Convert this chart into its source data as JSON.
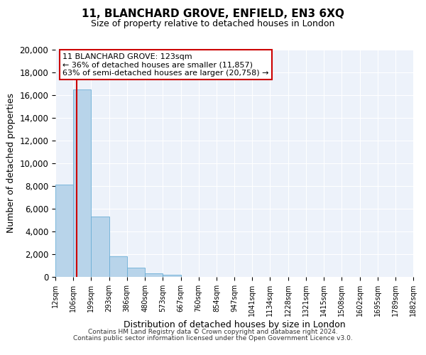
{
  "title": "11, BLANCHARD GROVE, ENFIELD, EN3 6XQ",
  "subtitle": "Size of property relative to detached houses in London",
  "xlabel": "Distribution of detached houses by size in London",
  "ylabel": "Number of detached properties",
  "bar_color": "#b8d4ea",
  "bar_edge_color": "#6aaed6",
  "property_line_value": 123,
  "property_line_color": "#cc0000",
  "annotation_title": "11 BLANCHARD GROVE: 123sqm",
  "annotation_line1": "← 36% of detached houses are smaller (11,857)",
  "annotation_line2": "63% of semi-detached houses are larger (20,758) →",
  "annotation_box_color": "#cc0000",
  "bin_edges": [
    12,
    106,
    199,
    293,
    386,
    480,
    573,
    667,
    760,
    854,
    947,
    1041,
    1134,
    1228,
    1321,
    1415,
    1508,
    1602,
    1695,
    1789,
    1882
  ],
  "bin_labels": [
    "12sqm",
    "106sqm",
    "199sqm",
    "293sqm",
    "386sqm",
    "480sqm",
    "573sqm",
    "667sqm",
    "760sqm",
    "854sqm",
    "947sqm",
    "1041sqm",
    "1134sqm",
    "1228sqm",
    "1321sqm",
    "1415sqm",
    "1508sqm",
    "1602sqm",
    "1695sqm",
    "1789sqm",
    "1882sqm"
  ],
  "counts": [
    8100,
    16500,
    5300,
    1800,
    800,
    300,
    200,
    0,
    0,
    0,
    0,
    0,
    0,
    0,
    0,
    0,
    0,
    0,
    0,
    0
  ],
  "ylim": [
    0,
    20000
  ],
  "yticks": [
    0,
    2000,
    4000,
    6000,
    8000,
    10000,
    12000,
    14000,
    16000,
    18000,
    20000
  ],
  "footer1": "Contains HM Land Registry data © Crown copyright and database right 2024.",
  "footer2": "Contains public sector information licensed under the Open Government Licence v3.0.",
  "bg_color": "#edf2fa"
}
